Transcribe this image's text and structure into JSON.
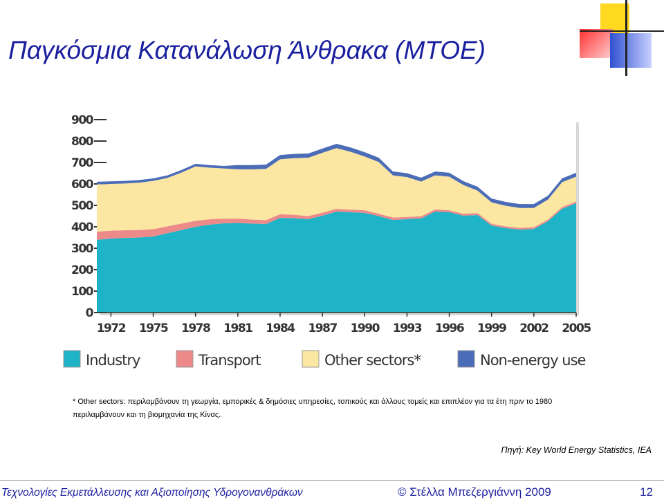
{
  "title": "Παγκόσμια Κατανάλωση Άνθρακα (MTOE)",
  "chart_data": {
    "type": "stacked_area",
    "x": [
      1971,
      1972,
      1973,
      1974,
      1975,
      1976,
      1977,
      1978,
      1979,
      1980,
      1981,
      1982,
      1983,
      1984,
      1985,
      1986,
      1987,
      1988,
      1989,
      1990,
      1991,
      1992,
      1993,
      1994,
      1995,
      1996,
      1997,
      1998,
      1999,
      2000,
      2001,
      2002,
      2003,
      2004,
      2005
    ],
    "series": [
      {
        "name": "Industry",
        "color": "#1fb3c8",
        "values": [
          339,
          345,
          348,
          350,
          355,
          370,
          385,
          400,
          410,
          416,
          418,
          415,
          413,
          442,
          440,
          435,
          452,
          471,
          468,
          465,
          450,
          432,
          436,
          439,
          471,
          468,
          452,
          455,
          406,
          394,
          387,
          390,
          426,
          484,
          510
        ]
      },
      {
        "name": "Transport",
        "color": "#ec8a8a",
        "values": [
          38,
          37,
          36,
          35,
          34,
          32,
          30,
          28,
          25,
          22,
          20,
          19,
          18,
          17,
          16,
          15,
          14,
          13,
          12,
          12,
          11,
          11,
          10,
          10,
          10,
          9,
          9,
          9,
          8,
          8,
          8,
          8,
          8,
          8,
          8
        ]
      },
      {
        "name": "Other sectors*",
        "color": "#fbe6a2",
        "values": [
          221,
          218,
          218,
          221,
          225,
          226,
          238,
          254,
          241,
          234,
          230,
          234,
          239,
          256,
          264,
          272,
          279,
          283,
          270,
          251,
          241,
          197,
          186,
          162,
          159,
          157,
          134,
          105,
          100,
          96,
          93,
          90,
          93,
          116,
          116
        ]
      },
      {
        "name": "Non-energy use",
        "color": "#4b6cb7",
        "values": [
          12,
          12,
          12,
          12,
          12,
          12,
          12,
          12,
          12,
          12,
          20,
          20,
          20,
          20,
          20,
          20,
          20,
          20,
          20,
          20,
          20,
          18,
          18,
          18,
          18,
          18,
          18,
          18,
          18,
          18,
          18,
          18,
          18,
          18,
          18
        ]
      }
    ],
    "xlim": [
      1971,
      2005
    ],
    "xticks": [
      1972,
      1975,
      1978,
      1981,
      1984,
      1987,
      1990,
      1993,
      1996,
      1999,
      2002,
      2005
    ],
    "ylim": [
      0,
      900
    ],
    "yticks": [
      0,
      100,
      200,
      300,
      400,
      500,
      600,
      700,
      800,
      900
    ]
  },
  "footnote": "* Other sectors: περιλαμβάνουν τη γεωργία, εμπορικές & δημόσιες υπηρεσίες, τοπικούς και άλλους τομείς και επιπλέον για τα έτη πριν το 1980 περιλαμβάνουν και τη βιομηχανία της Κίνας.",
  "source": "Πηγή: Key World Energy Statistics, IEA",
  "footer": {
    "course": "Τεχνολογίες Εκμετάλλευσης και Αξιοποίησης Υδρογονανθράκων",
    "author": "© Στέλλα Μπεζεργιάννη 2009",
    "page": "12"
  }
}
